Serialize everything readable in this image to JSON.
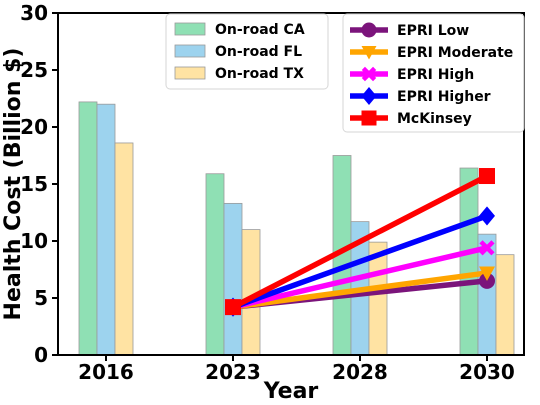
{
  "chart_data": {
    "type": "bar+line",
    "xlabel": "Year",
    "ylabel": "Health Cost (Billion $)",
    "ylim": [
      0,
      30
    ],
    "yticks": [
      0,
      5,
      10,
      15,
      20,
      25,
      30
    ],
    "categories": [
      "2016",
      "2023",
      "2028",
      "2030"
    ],
    "bar_series": [
      {
        "name": "On-road CA",
        "color": "#8fe0b4",
        "values": [
          22.2,
          15.9,
          17.5,
          16.4
        ]
      },
      {
        "name": "On-road FL",
        "color": "#9dd3ee",
        "values": [
          22.0,
          13.3,
          11.7,
          10.6
        ]
      },
      {
        "name": "On-road TX",
        "color": "#ffe3a3",
        "values": [
          18.6,
          11.0,
          9.9,
          8.8
        ]
      }
    ],
    "line_series": [
      {
        "name": "EPRI Low",
        "color": "#7b147b",
        "marker": "circle",
        "x": [
          "2023",
          "2030"
        ],
        "values": [
          4.2,
          6.5
        ]
      },
      {
        "name": "EPRI Moderate",
        "color": "#ffa500",
        "marker": "triangle-down",
        "x": [
          "2023",
          "2030"
        ],
        "values": [
          4.2,
          7.2
        ]
      },
      {
        "name": "EPRI High",
        "color": "#ff00ff",
        "marker": "x",
        "x": [
          "2023",
          "2030"
        ],
        "values": [
          4.2,
          9.4
        ]
      },
      {
        "name": "EPRI Higher",
        "color": "#0000ff",
        "marker": "diamond",
        "x": [
          "2023",
          "2030"
        ],
        "values": [
          4.2,
          12.2
        ]
      },
      {
        "name": "McKinsey",
        "color": "#ff0000",
        "marker": "square",
        "x": [
          "2023",
          "2030"
        ],
        "values": [
          4.2,
          15.7
        ]
      }
    ],
    "grid": false,
    "legends": [
      "upper-center",
      "upper-right"
    ]
  }
}
